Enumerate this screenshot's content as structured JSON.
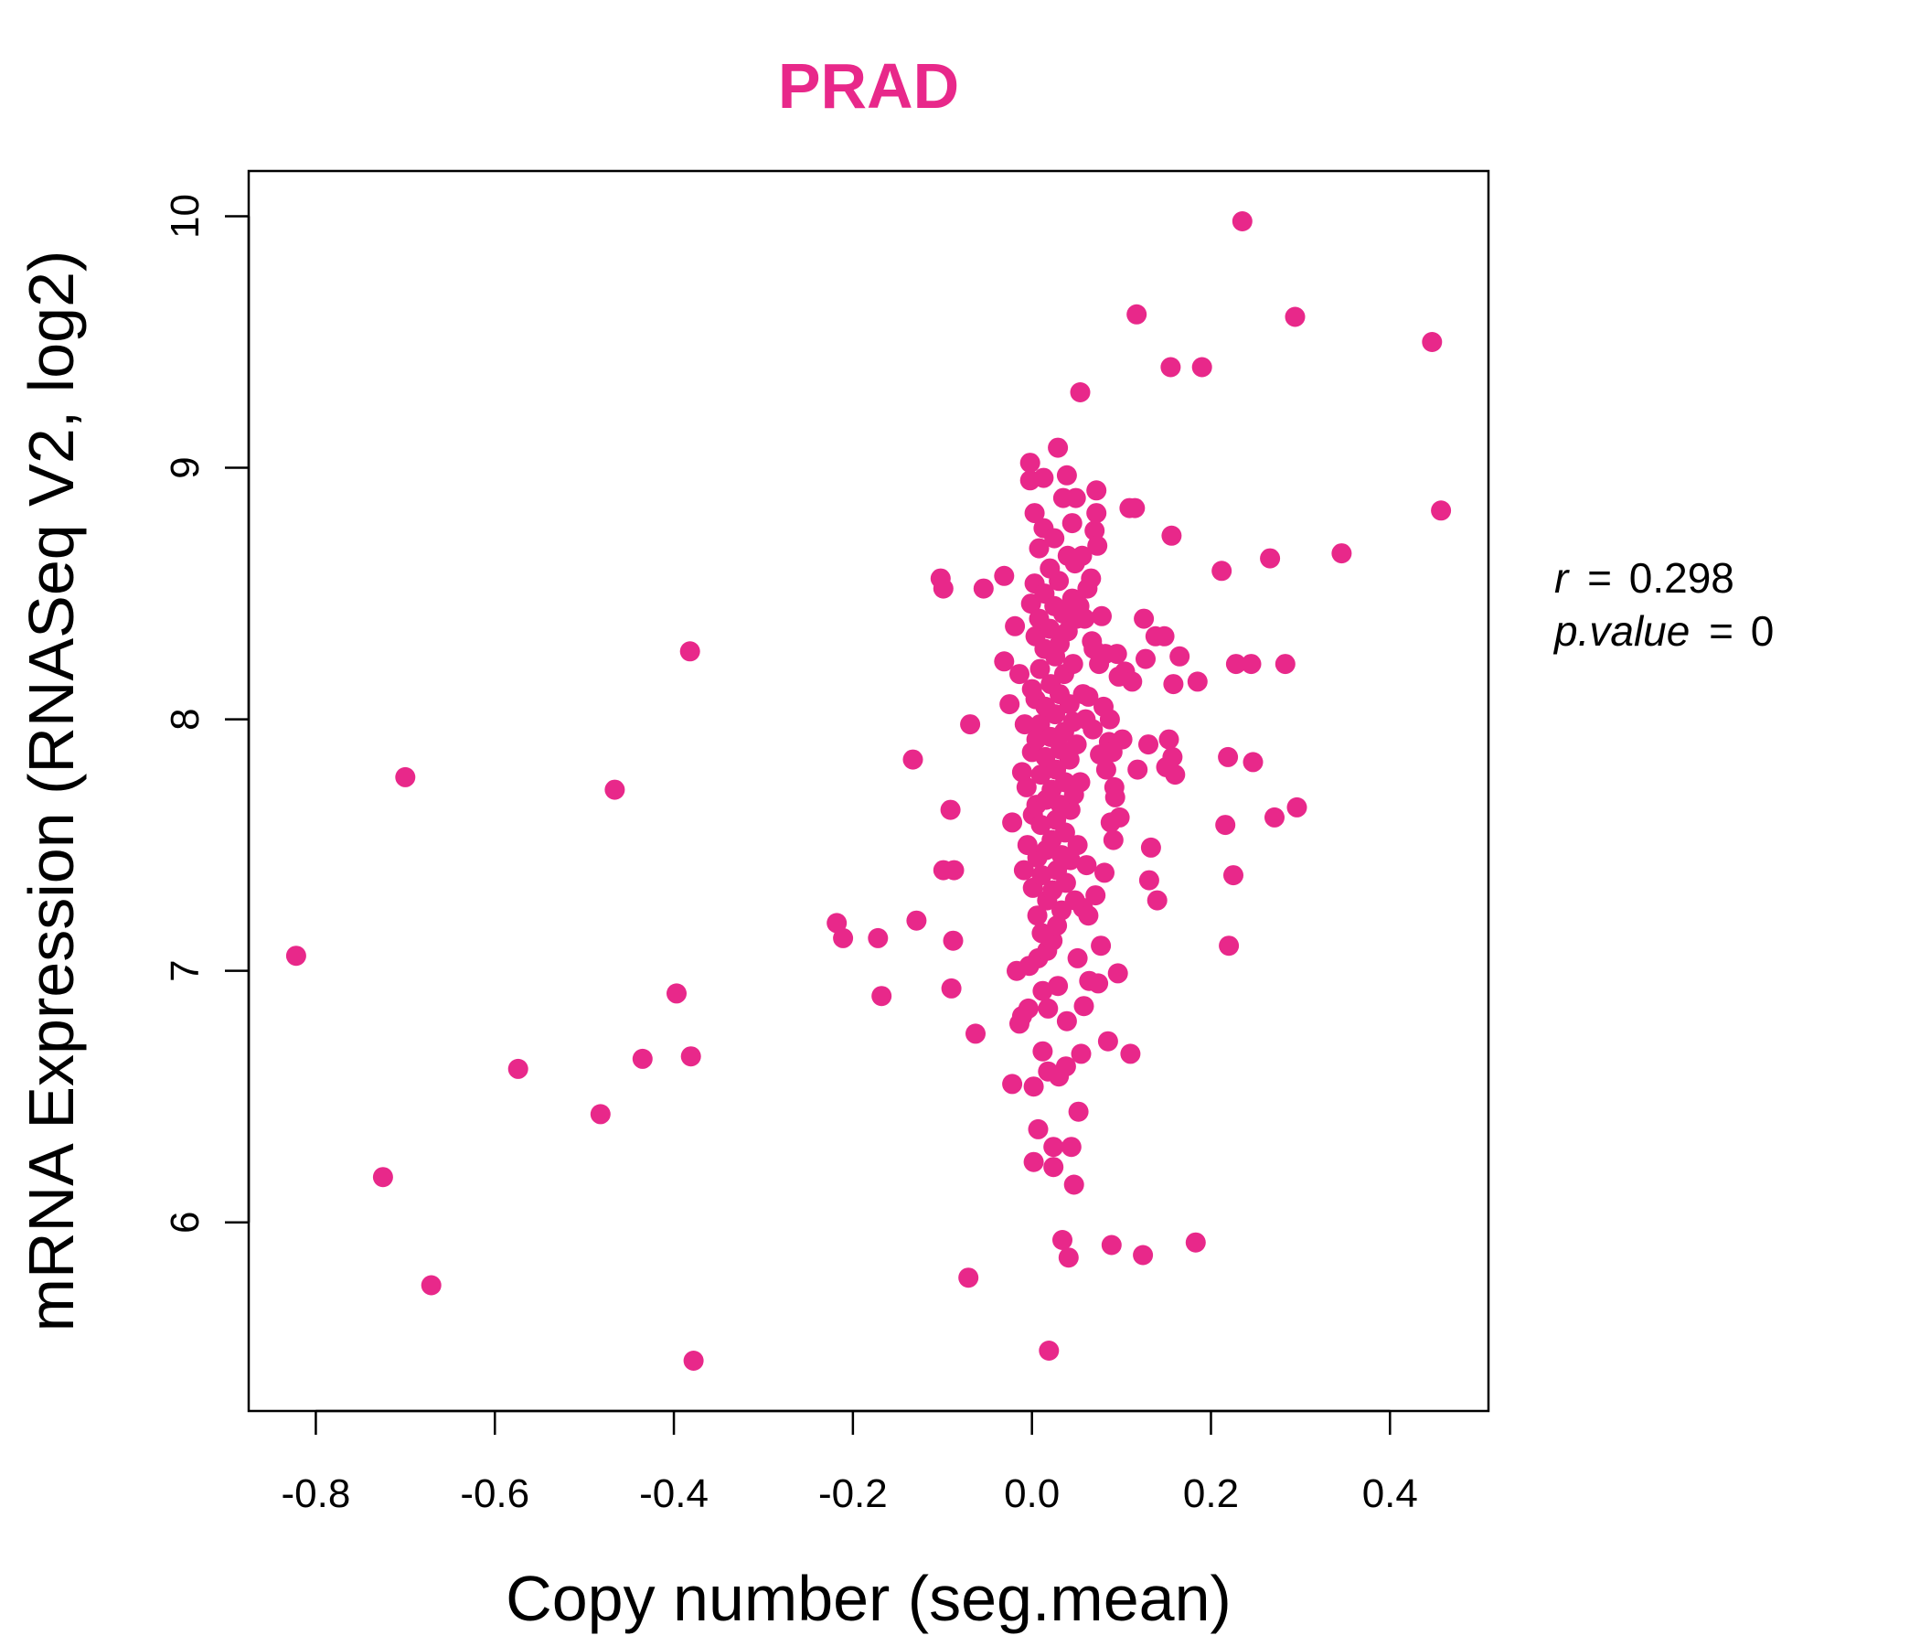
{
  "chart_data": {
    "type": "scatter",
    "title": "PRAD",
    "xlabel": "Copy number (seg.mean)",
    "ylabel": "mRNA Expression (RNASeq V2, log2)",
    "xlim": [
      -0.875,
      0.51
    ],
    "ylim": [
      5.25,
      10.18
    ],
    "x_ticks": [
      -0.8,
      -0.6,
      -0.4,
      -0.2,
      0.0,
      0.2,
      0.4
    ],
    "x_tick_labels": [
      "-0.8",
      "-0.6",
      "-0.4",
      "-0.2",
      "0.0",
      "0.2",
      "0.4"
    ],
    "y_ticks": [
      6,
      7,
      8,
      9,
      10
    ],
    "y_tick_labels": [
      "6",
      "7",
      "8",
      "9",
      "10"
    ],
    "grid": false,
    "legend": "none",
    "point_color": "#e8288a",
    "title_color": "#e8288a",
    "annotation": {
      "r_symbol": "r",
      "r_value": "0.298",
      "p_symbol": "p.value",
      "p_value": "0",
      "equals": "="
    },
    "points": [
      [
        -0.822,
        7.06
      ],
      [
        -0.725,
        6.18
      ],
      [
        -0.7,
        7.77
      ],
      [
        -0.671,
        5.75
      ],
      [
        -0.574,
        6.61
      ],
      [
        -0.482,
        6.43
      ],
      [
        -0.466,
        7.72
      ],
      [
        -0.435,
        6.65
      ],
      [
        -0.397,
        6.91
      ],
      [
        -0.382,
        8.27
      ],
      [
        -0.381,
        6.66
      ],
      [
        -0.378,
        5.45
      ],
      [
        -0.218,
        7.19
      ],
      [
        -0.211,
        7.13
      ],
      [
        -0.172,
        7.13
      ],
      [
        -0.168,
        6.9
      ],
      [
        -0.133,
        7.84
      ],
      [
        -0.129,
        7.2
      ],
      [
        -0.102,
        8.56
      ],
      [
        -0.099,
        8.52
      ],
      [
        -0.099,
        7.4
      ],
      [
        -0.091,
        7.64
      ],
      [
        -0.09,
        6.93
      ],
      [
        -0.088,
        7.12
      ],
      [
        -0.087,
        7.4
      ],
      [
        -0.071,
        5.78
      ],
      [
        -0.069,
        7.98
      ],
      [
        -0.063,
        6.75
      ],
      [
        -0.054,
        8.52
      ],
      [
        -0.031,
        8.57
      ],
      [
        -0.031,
        8.23
      ],
      [
        -0.025,
        8.06
      ],
      [
        -0.022,
        7.59
      ],
      [
        -0.022,
        6.55
      ],
      [
        -0.019,
        8.37
      ],
      [
        -0.017,
        7.0
      ],
      [
        -0.014,
        8.18
      ],
      [
        -0.014,
        6.79
      ],
      [
        -0.011,
        7.79
      ],
      [
        -0.011,
        6.82
      ],
      [
        -0.009,
        7.4
      ],
      [
        -0.008,
        7.98
      ],
      [
        -0.006,
        7.73
      ],
      [
        -0.005,
        7.5
      ],
      [
        -0.004,
        6.85
      ],
      [
        -0.003,
        7.02
      ],
      [
        -0.002,
        9.02
      ],
      [
        -0.002,
        8.95
      ],
      [
        -0.001,
        8.46
      ],
      [
        0.0,
        8.12
      ],
      [
        0.0,
        7.87
      ],
      [
        0.001,
        7.62
      ],
      [
        0.001,
        7.33
      ],
      [
        0.002,
        6.54
      ],
      [
        0.002,
        6.24
      ],
      [
        0.003,
        8.82
      ],
      [
        0.003,
        8.54
      ],
      [
        0.004,
        8.33
      ],
      [
        0.004,
        8.08
      ],
      [
        0.005,
        7.92
      ],
      [
        0.005,
        7.66
      ],
      [
        0.006,
        7.45
      ],
      [
        0.006,
        7.22
      ],
      [
        0.007,
        7.05
      ],
      [
        0.007,
        6.37
      ],
      [
        0.008,
        8.68
      ],
      [
        0.008,
        8.4
      ],
      [
        0.009,
        8.2
      ],
      [
        0.009,
        7.98
      ],
      [
        0.01,
        7.78
      ],
      [
        0.01,
        7.58
      ],
      [
        0.011,
        7.38
      ],
      [
        0.011,
        7.15
      ],
      [
        0.012,
        6.92
      ],
      [
        0.012,
        6.68
      ],
      [
        0.013,
        8.96
      ],
      [
        0.013,
        8.76
      ],
      [
        0.014,
        8.5
      ],
      [
        0.014,
        8.28
      ],
      [
        0.015,
        8.05
      ],
      [
        0.015,
        7.85
      ],
      [
        0.016,
        7.68
      ],
      [
        0.016,
        7.48
      ],
      [
        0.017,
        7.28
      ],
      [
        0.017,
        7.08
      ],
      [
        0.018,
        6.85
      ],
      [
        0.018,
        6.6
      ],
      [
        0.019,
        5.49
      ],
      [
        0.02,
        8.6
      ],
      [
        0.02,
        8.36
      ],
      [
        0.021,
        8.14
      ],
      [
        0.021,
        7.93
      ],
      [
        0.022,
        7.72
      ],
      [
        0.022,
        7.52
      ],
      [
        0.023,
        7.32
      ],
      [
        0.023,
        7.12
      ],
      [
        0.024,
        6.3
      ],
      [
        0.024,
        6.22
      ],
      [
        0.025,
        8.72
      ],
      [
        0.025,
        8.45
      ],
      [
        0.026,
        8.25
      ],
      [
        0.026,
        8.02
      ],
      [
        0.027,
        7.8
      ],
      [
        0.027,
        7.6
      ],
      [
        0.028,
        7.4
      ],
      [
        0.028,
        7.18
      ],
      [
        0.029,
        9.08
      ],
      [
        0.029,
        6.94
      ],
      [
        0.03,
        6.58
      ],
      [
        0.03,
        8.55
      ],
      [
        0.031,
        8.3
      ],
      [
        0.031,
        8.1
      ],
      [
        0.032,
        7.88
      ],
      [
        0.032,
        7.66
      ],
      [
        0.033,
        7.46
      ],
      [
        0.033,
        7.24
      ],
      [
        0.034,
        5.93
      ],
      [
        0.035,
        8.88
      ],
      [
        0.035,
        8.42
      ],
      [
        0.036,
        8.18
      ],
      [
        0.036,
        7.95
      ],
      [
        0.037,
        7.75
      ],
      [
        0.037,
        7.55
      ],
      [
        0.038,
        7.35
      ],
      [
        0.038,
        6.62
      ],
      [
        0.039,
        8.97
      ],
      [
        0.039,
        6.8
      ],
      [
        0.04,
        8.65
      ],
      [
        0.04,
        8.35
      ],
      [
        0.041,
        5.86
      ],
      [
        0.042,
        8.06
      ],
      [
        0.042,
        7.84
      ],
      [
        0.043,
        7.64
      ],
      [
        0.043,
        7.44
      ],
      [
        0.044,
        6.3
      ],
      [
        0.045,
        8.78
      ],
      [
        0.045,
        8.48
      ],
      [
        0.046,
        8.22
      ],
      [
        0.046,
        7.99
      ],
      [
        0.047,
        7.7
      ],
      [
        0.047,
        6.15
      ],
      [
        0.048,
        8.62
      ],
      [
        0.048,
        7.28
      ],
      [
        0.049,
        8.88
      ],
      [
        0.05,
        8.4
      ],
      [
        0.05,
        7.9
      ],
      [
        0.051,
        7.5
      ],
      [
        0.051,
        7.05
      ],
      [
        0.052,
        6.44
      ],
      [
        0.053,
        8.45
      ],
      [
        0.054,
        9.3
      ],
      [
        0.054,
        7.75
      ],
      [
        0.055,
        6.67
      ],
      [
        0.056,
        8.65
      ],
      [
        0.057,
        8.1
      ],
      [
        0.057,
        7.25
      ],
      [
        0.058,
        6.86
      ],
      [
        0.059,
        8.4
      ],
      [
        0.06,
        8.0
      ],
      [
        0.061,
        7.42
      ],
      [
        0.062,
        8.52
      ],
      [
        0.063,
        8.09
      ],
      [
        0.063,
        7.22
      ],
      [
        0.064,
        6.96
      ],
      [
        0.066,
        8.56
      ],
      [
        0.067,
        8.31
      ],
      [
        0.068,
        7.96
      ],
      [
        0.069,
        8.28
      ],
      [
        0.07,
        8.75
      ],
      [
        0.071,
        7.3
      ],
      [
        0.072,
        8.91
      ],
      [
        0.072,
        8.82
      ],
      [
        0.073,
        8.69
      ],
      [
        0.074,
        6.95
      ],
      [
        0.075,
        8.22
      ],
      [
        0.076,
        7.86
      ],
      [
        0.077,
        7.1
      ],
      [
        0.078,
        8.41
      ],
      [
        0.08,
        8.05
      ],
      [
        0.081,
        7.39
      ],
      [
        0.082,
        8.26
      ],
      [
        0.083,
        7.8
      ],
      [
        0.085,
        6.72
      ],
      [
        0.086,
        7.91
      ],
      [
        0.087,
        8.0
      ],
      [
        0.088,
        7.59
      ],
      [
        0.089,
        5.91
      ],
      [
        0.09,
        7.87
      ],
      [
        0.091,
        7.52
      ],
      [
        0.092,
        7.73
      ],
      [
        0.093,
        7.69
      ],
      [
        0.095,
        8.26
      ],
      [
        0.096,
        6.99
      ],
      [
        0.097,
        8.17
      ],
      [
        0.098,
        7.61
      ],
      [
        0.101,
        7.92
      ],
      [
        0.104,
        8.19
      ],
      [
        0.109,
        8.84
      ],
      [
        0.11,
        6.67
      ],
      [
        0.112,
        8.15
      ],
      [
        0.115,
        8.84
      ],
      [
        0.117,
        9.61
      ],
      [
        0.118,
        7.8
      ],
      [
        0.124,
        5.87
      ],
      [
        0.125,
        8.4
      ],
      [
        0.127,
        8.24
      ],
      [
        0.13,
        7.9
      ],
      [
        0.131,
        7.36
      ],
      [
        0.133,
        7.49
      ],
      [
        0.138,
        8.33
      ],
      [
        0.14,
        7.28
      ],
      [
        0.148,
        8.33
      ],
      [
        0.15,
        7.81
      ],
      [
        0.153,
        7.92
      ],
      [
        0.155,
        9.4
      ],
      [
        0.156,
        8.73
      ],
      [
        0.157,
        7.85
      ],
      [
        0.158,
        8.14
      ],
      [
        0.16,
        7.78
      ],
      [
        0.165,
        8.25
      ],
      [
        0.183,
        5.92
      ],
      [
        0.185,
        8.15
      ],
      [
        0.19,
        9.4
      ],
      [
        0.212,
        8.59
      ],
      [
        0.216,
        7.58
      ],
      [
        0.219,
        7.85
      ],
      [
        0.22,
        7.1
      ],
      [
        0.225,
        7.38
      ],
      [
        0.228,
        8.22
      ],
      [
        0.235,
        9.98
      ],
      [
        0.245,
        8.22
      ],
      [
        0.247,
        7.83
      ],
      [
        0.266,
        8.64
      ],
      [
        0.271,
        7.61
      ],
      [
        0.283,
        8.22
      ],
      [
        0.294,
        9.6
      ],
      [
        0.296,
        7.65
      ],
      [
        0.346,
        8.66
      ],
      [
        0.447,
        9.5
      ],
      [
        0.457,
        8.83
      ]
    ]
  }
}
